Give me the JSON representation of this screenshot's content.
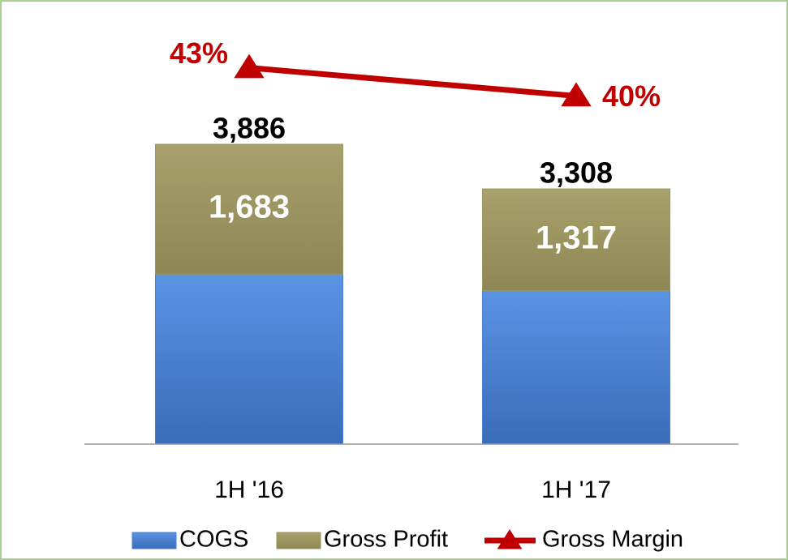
{
  "chart_data": {
    "type": "bar",
    "stacked": true,
    "categories": [
      "1H '16",
      "1H '17"
    ],
    "ylim": [
      0,
      5000
    ],
    "y2lim": [
      3,
      44
    ],
    "total_labels": [
      "3,886",
      "3,308"
    ],
    "legend": "bottom",
    "series": [
      {
        "name": "COGS",
        "color": "#4a80d2",
        "values": [
          2203,
          1991
        ]
      },
      {
        "name": "Gross Profit",
        "color": "#9c9561",
        "values": [
          1683,
          1317
        ],
        "value_labels": [
          "1,683",
          "1,317"
        ]
      },
      {
        "name": "Gross Margin",
        "type": "line",
        "axis": "y2",
        "color": "#c00000",
        "values": [
          43,
          40
        ],
        "value_labels": [
          "43%",
          "40%"
        ]
      }
    ]
  }
}
